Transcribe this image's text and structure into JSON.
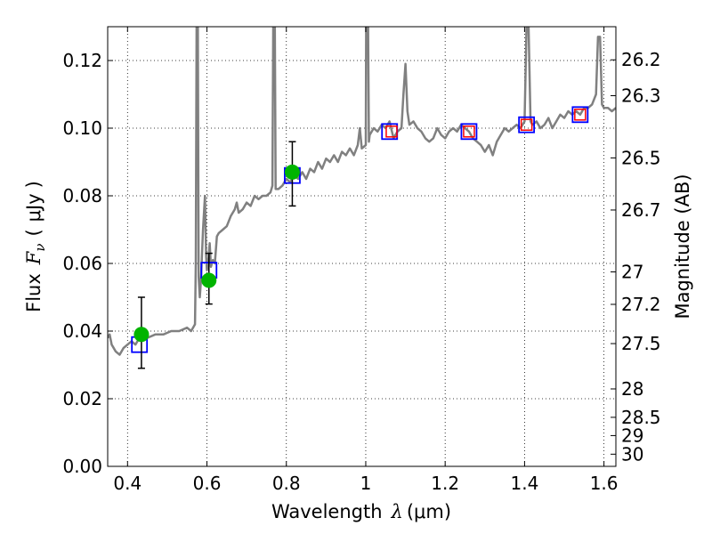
{
  "chart_data": {
    "type": "scatter",
    "xlabel": {
      "text": "Wavelength",
      "symbol": "λ",
      "unit": "(μm)"
    },
    "ylabel": {
      "text": "Flux",
      "symbol": "F",
      "subscript": "ν",
      "unit": "μJy"
    },
    "ylabel_right": "Magnitude (AB)",
    "xlim": [
      0.35,
      1.63
    ],
    "ylim": [
      0.0,
      0.13
    ],
    "grid": true,
    "x_ticks": [
      {
        "value": 0.4,
        "label": "0.4"
      },
      {
        "value": 0.6,
        "label": "0.6"
      },
      {
        "value": 0.8,
        "label": "0.8"
      },
      {
        "value": 1.0,
        "label": "1"
      },
      {
        "value": 1.2,
        "label": "1.2"
      },
      {
        "value": 1.4,
        "label": "1.4"
      },
      {
        "value": 1.6,
        "label": "1.6"
      }
    ],
    "y_ticks": [
      {
        "value": 0.0,
        "label": "0.00"
      },
      {
        "value": 0.02,
        "label": "0.02"
      },
      {
        "value": 0.04,
        "label": "0.04"
      },
      {
        "value": 0.06,
        "label": "0.06"
      },
      {
        "value": 0.08,
        "label": "0.08"
      },
      {
        "value": 0.1,
        "label": "0.10"
      },
      {
        "value": 0.12,
        "label": "0.12"
      }
    ],
    "right_ticks": [
      {
        "label": "26.2",
        "flux": 0.1202
      },
      {
        "label": "26.3",
        "flux": 0.1096
      },
      {
        "label": "26.5",
        "flux": 0.0912
      },
      {
        "label": "26.7",
        "flux": 0.0758
      },
      {
        "label": "27",
        "flux": 0.0575
      },
      {
        "label": "27.2",
        "flux": 0.0479
      },
      {
        "label": "27.5",
        "flux": 0.0363
      },
      {
        "label": "28",
        "flux": 0.0229
      },
      {
        "label": "28.5",
        "flux": 0.0145
      },
      {
        "label": "29",
        "flux": 0.0091
      },
      {
        "label": "30",
        "flux": 0.0036
      }
    ],
    "model_spectrum": {
      "color": "#808080",
      "points": [
        [
          0.35,
          0.038
        ],
        [
          0.355,
          0.039
        ],
        [
          0.36,
          0.036
        ],
        [
          0.37,
          0.034
        ],
        [
          0.38,
          0.033
        ],
        [
          0.39,
          0.035
        ],
        [
          0.4,
          0.036
        ],
        [
          0.41,
          0.037
        ],
        [
          0.42,
          0.036
        ],
        [
          0.43,
          0.038
        ],
        [
          0.45,
          0.038
        ],
        [
          0.47,
          0.039
        ],
        [
          0.49,
          0.039
        ],
        [
          0.51,
          0.04
        ],
        [
          0.53,
          0.04
        ],
        [
          0.55,
          0.041
        ],
        [
          0.56,
          0.04
        ],
        [
          0.565,
          0.041
        ],
        [
          0.57,
          0.042
        ],
        [
          0.572,
          0.06
        ],
        [
          0.574,
          0.13
        ],
        [
          0.577,
          0.13
        ],
        [
          0.579,
          0.056
        ],
        [
          0.582,
          0.05
        ],
        [
          0.585,
          0.055
        ],
        [
          0.59,
          0.07
        ],
        [
          0.595,
          0.08
        ],
        [
          0.598,
          0.062
        ],
        [
          0.6,
          0.058
        ],
        [
          0.603,
          0.06
        ],
        [
          0.607,
          0.066
        ],
        [
          0.61,
          0.059
        ],
        [
          0.615,
          0.061
        ],
        [
          0.62,
          0.06
        ],
        [
          0.625,
          0.068
        ],
        [
          0.63,
          0.069
        ],
        [
          0.64,
          0.07
        ],
        [
          0.65,
          0.071
        ],
        [
          0.66,
          0.074
        ],
        [
          0.67,
          0.076
        ],
        [
          0.675,
          0.078
        ],
        [
          0.68,
          0.075
        ],
        [
          0.69,
          0.076
        ],
        [
          0.7,
          0.078
        ],
        [
          0.71,
          0.077
        ],
        [
          0.72,
          0.08
        ],
        [
          0.73,
          0.079
        ],
        [
          0.74,
          0.08
        ],
        [
          0.75,
          0.08
        ],
        [
          0.76,
          0.081
        ],
        [
          0.765,
          0.083
        ],
        [
          0.767,
          0.13
        ],
        [
          0.771,
          0.13
        ],
        [
          0.773,
          0.082
        ],
        [
          0.78,
          0.082
        ],
        [
          0.79,
          0.083
        ],
        [
          0.8,
          0.085
        ],
        [
          0.81,
          0.084
        ],
        [
          0.82,
          0.086
        ],
        [
          0.83,
          0.085
        ],
        [
          0.84,
          0.087
        ],
        [
          0.85,
          0.085
        ],
        [
          0.86,
          0.088
        ],
        [
          0.87,
          0.087
        ],
        [
          0.88,
          0.09
        ],
        [
          0.89,
          0.088
        ],
        [
          0.9,
          0.091
        ],
        [
          0.91,
          0.09
        ],
        [
          0.92,
          0.092
        ],
        [
          0.93,
          0.09
        ],
        [
          0.94,
          0.093
        ],
        [
          0.95,
          0.092
        ],
        [
          0.96,
          0.094
        ],
        [
          0.97,
          0.092
        ],
        [
          0.98,
          0.095
        ],
        [
          0.985,
          0.1
        ],
        [
          0.99,
          0.094
        ],
        [
          1.0,
          0.095
        ],
        [
          1.001,
          0.13
        ],
        [
          1.006,
          0.13
        ],
        [
          1.008,
          0.096
        ],
        [
          1.01,
          0.098
        ],
        [
          1.02,
          0.1
        ],
        [
          1.03,
          0.099
        ],
        [
          1.04,
          0.101
        ],
        [
          1.05,
          0.1
        ],
        [
          1.06,
          0.102
        ],
        [
          1.07,
          0.097
        ],
        [
          1.08,
          0.099
        ],
        [
          1.09,
          0.1
        ],
        [
          1.095,
          0.11
        ],
        [
          1.1,
          0.119
        ],
        [
          1.105,
          0.105
        ],
        [
          1.11,
          0.101
        ],
        [
          1.12,
          0.102
        ],
        [
          1.13,
          0.1
        ],
        [
          1.14,
          0.099
        ],
        [
          1.15,
          0.097
        ],
        [
          1.16,
          0.096
        ],
        [
          1.17,
          0.097
        ],
        [
          1.18,
          0.1
        ],
        [
          1.19,
          0.098
        ],
        [
          1.2,
          0.097
        ],
        [
          1.21,
          0.099
        ],
        [
          1.22,
          0.1
        ],
        [
          1.23,
          0.099
        ],
        [
          1.24,
          0.101
        ],
        [
          1.25,
          0.1
        ],
        [
          1.26,
          0.099
        ],
        [
          1.27,
          0.097
        ],
        [
          1.28,
          0.096
        ],
        [
          1.29,
          0.095
        ],
        [
          1.3,
          0.093
        ],
        [
          1.31,
          0.095
        ],
        [
          1.32,
          0.092
        ],
        [
          1.33,
          0.096
        ],
        [
          1.34,
          0.098
        ],
        [
          1.35,
          0.1
        ],
        [
          1.36,
          0.099
        ],
        [
          1.37,
          0.1
        ],
        [
          1.38,
          0.101
        ],
        [
          1.39,
          0.1
        ],
        [
          1.4,
          0.102
        ],
        [
          1.405,
          0.13
        ],
        [
          1.41,
          0.13
        ],
        [
          1.415,
          0.102
        ],
        [
          1.42,
          0.101
        ],
        [
          1.43,
          0.102
        ],
        [
          1.44,
          0.1
        ],
        [
          1.45,
          0.101
        ],
        [
          1.46,
          0.103
        ],
        [
          1.47,
          0.1
        ],
        [
          1.48,
          0.102
        ],
        [
          1.49,
          0.104
        ],
        [
          1.5,
          0.103
        ],
        [
          1.51,
          0.105
        ],
        [
          1.52,
          0.104
        ],
        [
          1.53,
          0.105
        ],
        [
          1.54,
          0.104
        ],
        [
          1.55,
          0.106
        ],
        [
          1.56,
          0.106
        ],
        [
          1.57,
          0.107
        ],
        [
          1.58,
          0.11
        ],
        [
          1.585,
          0.127
        ],
        [
          1.59,
          0.127
        ],
        [
          1.595,
          0.107
        ],
        [
          1.6,
          0.106
        ],
        [
          1.61,
          0.106
        ],
        [
          1.62,
          0.105
        ],
        [
          1.63,
          0.106
        ]
      ]
    },
    "model_photometry": {
      "marker": "square",
      "color": "#0000ff",
      "points": [
        [
          0.43,
          0.036
        ],
        [
          0.605,
          0.058
        ],
        [
          0.815,
          0.086
        ],
        [
          1.06,
          0.099
        ],
        [
          1.26,
          0.099
        ],
        [
          1.405,
          0.101
        ],
        [
          1.54,
          0.104
        ]
      ]
    },
    "nir_markers": {
      "marker": "square",
      "color": "#ff0000",
      "points": [
        [
          1.065,
          0.099
        ],
        [
          1.26,
          0.099
        ],
        [
          1.405,
          0.101
        ],
        [
          1.54,
          0.104
        ]
      ]
    },
    "observed_photometry": {
      "marker": "circle",
      "color": "#00b400",
      "errorbar_color": "#000000",
      "points": [
        {
          "x": 0.435,
          "y": 0.039,
          "lo": 0.029,
          "hi": 0.05
        },
        {
          "x": 0.605,
          "y": 0.055,
          "lo": 0.048,
          "hi": 0.063
        },
        {
          "x": 0.815,
          "y": 0.087,
          "lo": 0.077,
          "hi": 0.096
        }
      ]
    }
  }
}
